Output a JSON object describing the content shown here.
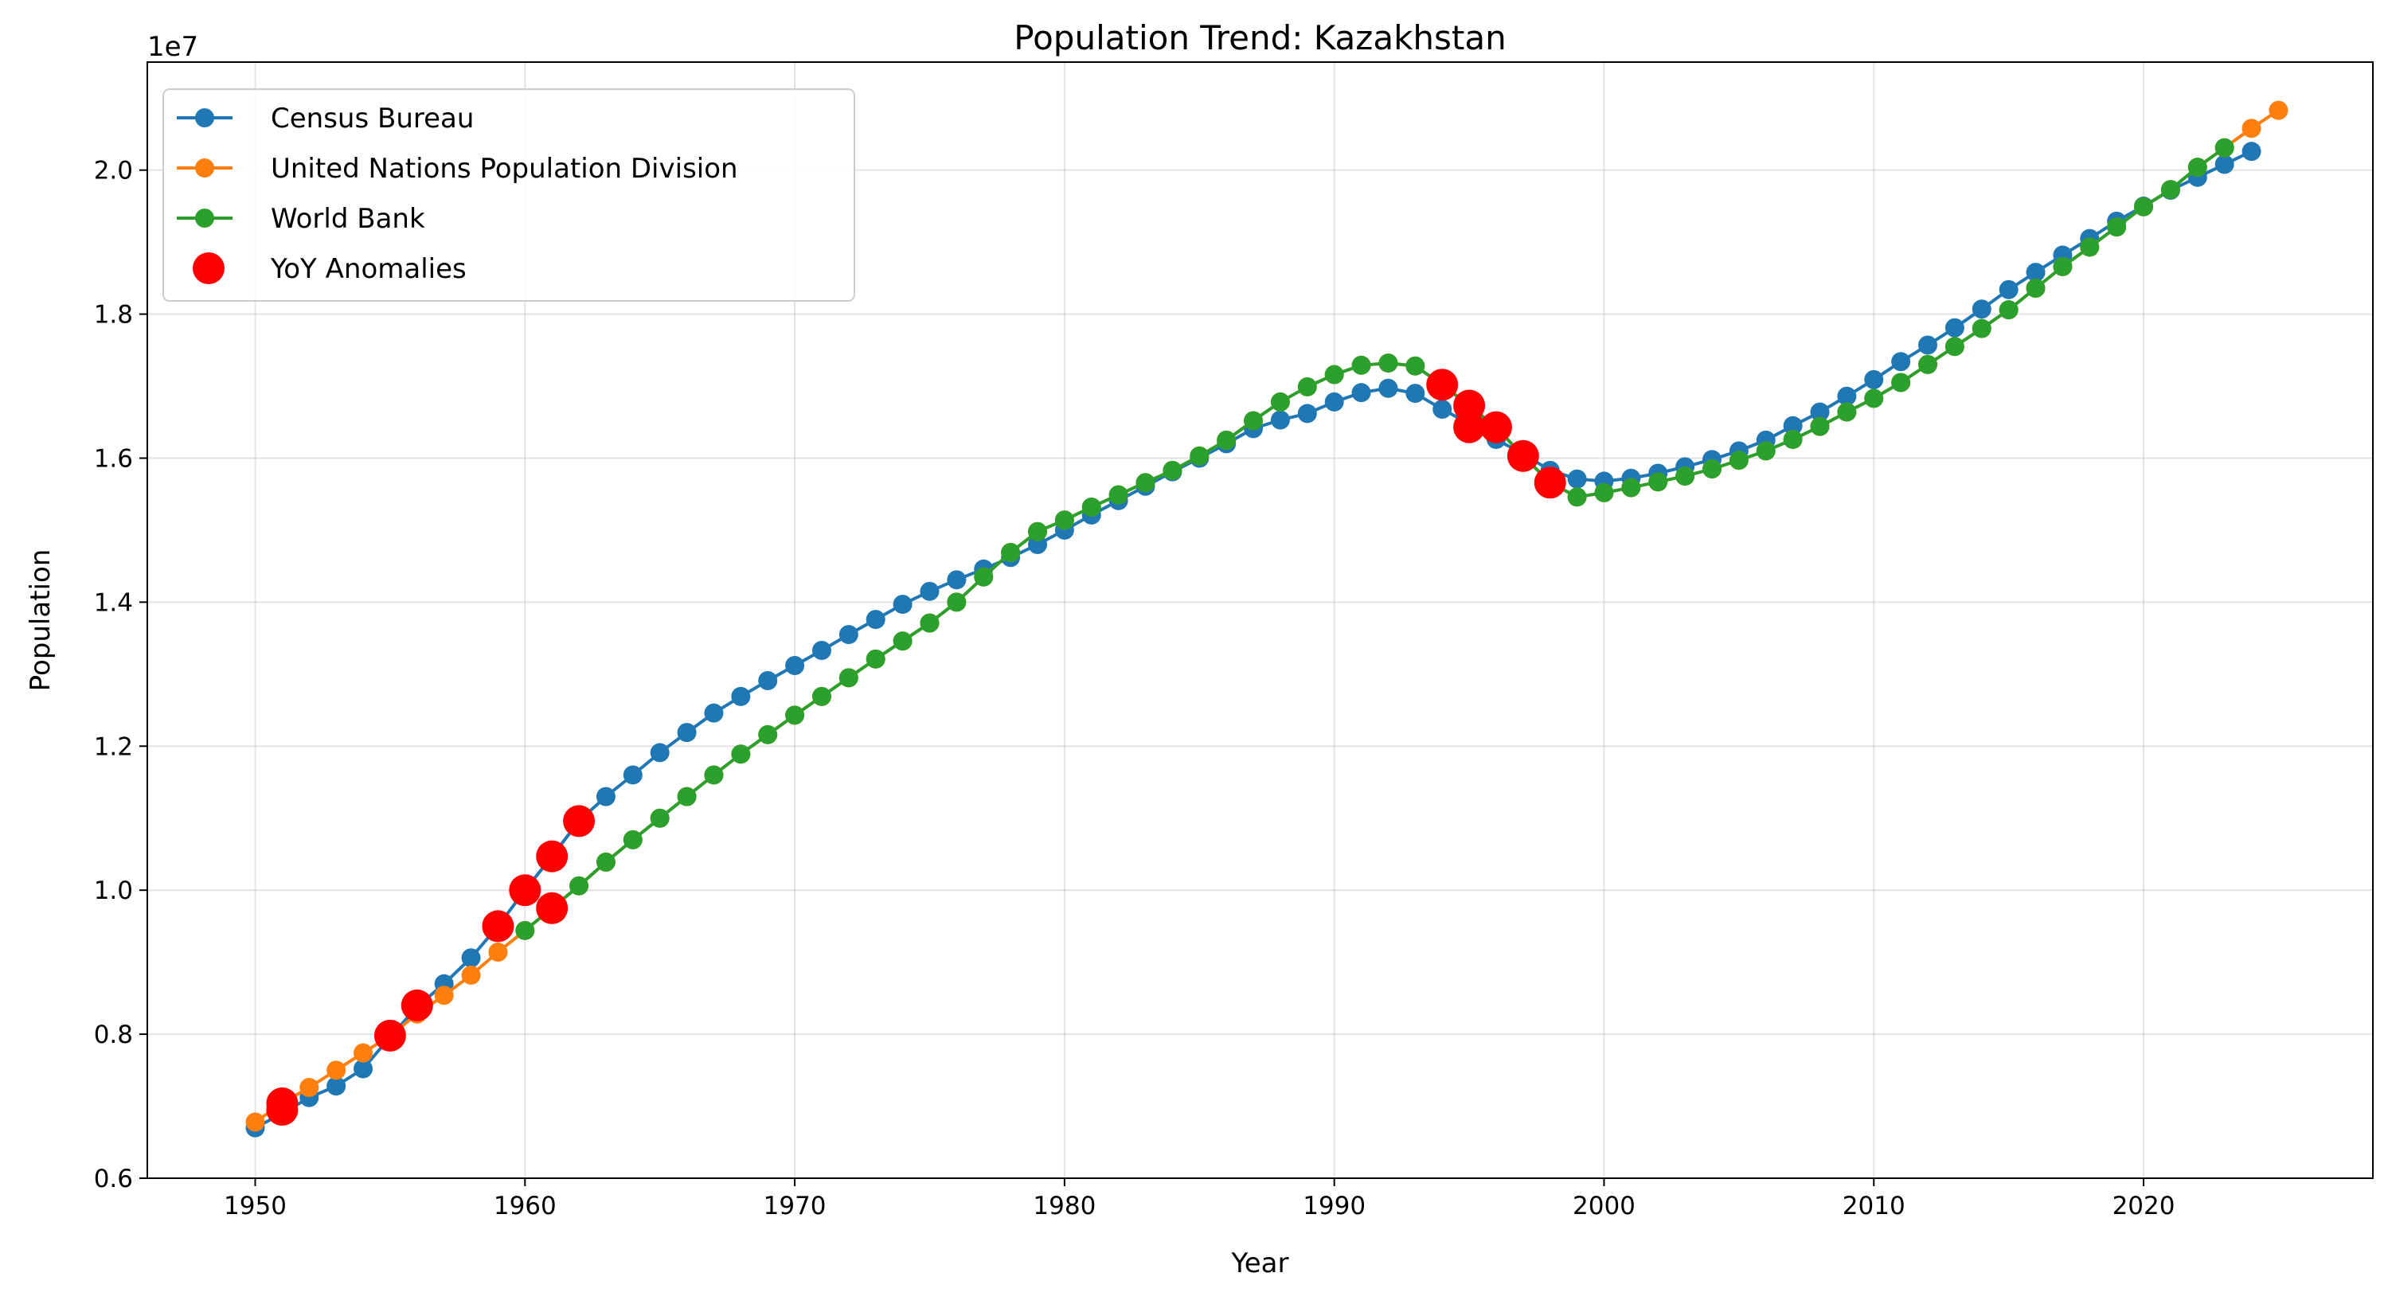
{
  "chart_data": {
    "type": "line",
    "title": "Population Trend: Kazakhstan",
    "xlabel": "Year",
    "ylabel": "Population",
    "y_multiplier": "1e7",
    "xlim": [
      1946,
      2028.5
    ],
    "ylim": [
      0.6,
      2.15
    ],
    "x_ticks": [
      1950,
      1960,
      1970,
      1980,
      1990,
      2000,
      2010,
      2020
    ],
    "y_ticks": [
      "0.6",
      "0.8",
      "1.0",
      "1.2",
      "1.4",
      "1.6",
      "1.8",
      "2.0"
    ],
    "grid": true,
    "legend_position": "upper left",
    "colors": {
      "census": "#1f77b4",
      "un": "#ff7f0e",
      "wb": "#2ca02c",
      "anomaly": "#ff0000"
    },
    "series": [
      {
        "name": "Census Bureau",
        "x": [
          1950,
          1951,
          1952,
          1953,
          1954,
          1955,
          1956,
          1957,
          1958,
          1959,
          1960,
          1961,
          1962,
          1963,
          1964,
          1965,
          1966,
          1967,
          1968,
          1969,
          1970,
          1971,
          1972,
          1973,
          1974,
          1975,
          1976,
          1977,
          1978,
          1979,
          1980,
          1981,
          1982,
          1983,
          1984,
          1985,
          1986,
          1987,
          1988,
          1989,
          1990,
          1991,
          1992,
          1993,
          1994,
          1995,
          1996,
          1997,
          1998,
          1999,
          2000,
          2001,
          2002,
          2003,
          2004,
          2005,
          2006,
          2007,
          2008,
          2009,
          2010,
          2011,
          2012,
          2013,
          2014,
          2015,
          2016,
          2017,
          2018,
          2019,
          2020,
          2021,
          2022,
          2023,
          2024
        ],
        "y": [
          0.67,
          0.69,
          0.712,
          0.728,
          0.752,
          0.796,
          0.838,
          0.87,
          0.906,
          0.95,
          1.0,
          1.047,
          1.096,
          1.13,
          1.16,
          1.191,
          1.219,
          1.246,
          1.269,
          1.291,
          1.312,
          1.333,
          1.355,
          1.376,
          1.397,
          1.415,
          1.431,
          1.446,
          1.462,
          1.48,
          1.5,
          1.521,
          1.541,
          1.561,
          1.581,
          1.6,
          1.62,
          1.641,
          1.653,
          1.662,
          1.678,
          1.691,
          1.697,
          1.69,
          1.668,
          1.648,
          1.626,
          1.606,
          1.583,
          1.571,
          1.568,
          1.572,
          1.579,
          1.588,
          1.598,
          1.61,
          1.625,
          1.645,
          1.664,
          1.686,
          1.709,
          1.734,
          1.757,
          1.781,
          1.807,
          1.834,
          1.858,
          1.882,
          1.905,
          1.929,
          1.95,
          1.972,
          1.99,
          2.008,
          2.026
        ]
      },
      {
        "name": "United Nations Population Division",
        "x": [
          1950,
          1951,
          1952,
          1953,
          1954,
          1955,
          1956,
          1957,
          1958,
          1959,
          1960,
          1961,
          1962,
          1963,
          1964,
          1965,
          1966,
          1967,
          1968,
          1969,
          1970,
          1971,
          1972,
          1973,
          1974,
          1975,
          1976,
          1977,
          1978,
          1979,
          1980,
          1981,
          1982,
          1983,
          1984,
          1985,
          1986,
          1987,
          1988,
          1989,
          1990,
          1991,
          1992,
          1993,
          1994,
          1995,
          1996,
          1997,
          1998,
          1999,
          2000,
          2001,
          2002,
          2003,
          2004,
          2005,
          2006,
          2007,
          2008,
          2009,
          2010,
          2011,
          2012,
          2013,
          2014,
          2015,
          2016,
          2017,
          2018,
          2019,
          2020,
          2021,
          2022,
          2023,
          2024,
          2025
        ],
        "y": [
          0.678,
          0.704,
          0.726,
          0.75,
          0.774,
          0.798,
          0.828,
          0.854,
          0.882,
          0.914,
          0.944,
          0.975,
          1.006,
          1.039,
          1.07,
          1.1,
          1.13,
          1.16,
          1.189,
          1.216,
          1.243,
          1.269,
          1.295,
          1.321,
          1.346,
          1.371,
          1.4,
          1.435,
          1.469,
          1.498,
          1.514,
          1.532,
          1.549,
          1.566,
          1.583,
          1.603,
          1.625,
          1.652,
          1.678,
          1.699,
          1.716,
          1.729,
          1.732,
          1.728,
          1.702,
          1.673,
          1.643,
          1.603,
          1.566,
          1.546,
          1.552,
          1.559,
          1.567,
          1.575,
          1.585,
          1.597,
          1.61,
          1.626,
          1.644,
          1.664,
          1.683,
          1.705,
          1.73,
          1.755,
          1.78,
          1.806,
          1.836,
          1.866,
          1.893,
          1.921,
          1.949,
          1.973,
          2.004,
          2.031,
          2.058,
          2.083
        ]
      },
      {
        "name": "World Bank",
        "x": [
          1960,
          1961,
          1962,
          1963,
          1964,
          1965,
          1966,
          1967,
          1968,
          1969,
          1970,
          1971,
          1972,
          1973,
          1974,
          1975,
          1976,
          1977,
          1978,
          1979,
          1980,
          1981,
          1982,
          1983,
          1984,
          1985,
          1986,
          1987,
          1988,
          1989,
          1990,
          1991,
          1992,
          1993,
          1994,
          1995,
          1996,
          1997,
          1998,
          1999,
          2000,
          2001,
          2002,
          2003,
          2004,
          2005,
          2006,
          2007,
          2008,
          2009,
          2010,
          2011,
          2012,
          2013,
          2014,
          2015,
          2016,
          2017,
          2018,
          2019,
          2020,
          2021,
          2022,
          2023
        ],
        "y": [
          0.944,
          0.975,
          1.006,
          1.039,
          1.07,
          1.1,
          1.13,
          1.16,
          1.189,
          1.216,
          1.243,
          1.269,
          1.295,
          1.321,
          1.346,
          1.371,
          1.4,
          1.435,
          1.469,
          1.498,
          1.514,
          1.532,
          1.549,
          1.566,
          1.583,
          1.603,
          1.625,
          1.652,
          1.678,
          1.699,
          1.716,
          1.729,
          1.732,
          1.728,
          1.702,
          1.673,
          1.643,
          1.603,
          1.566,
          1.546,
          1.552,
          1.559,
          1.567,
          1.575,
          1.585,
          1.597,
          1.61,
          1.626,
          1.644,
          1.664,
          1.683,
          1.705,
          1.73,
          1.755,
          1.78,
          1.806,
          1.836,
          1.866,
          1.893,
          1.921,
          1.949,
          1.973,
          2.004,
          2.031
        ]
      },
      {
        "name": "YoY Anomalies",
        "x": [
          1951,
          1951,
          1955,
          1956,
          1959,
          1960,
          1961,
          1961,
          1962,
          1994,
          1995,
          1995,
          1996,
          1997,
          1998
        ],
        "y": [
          0.695,
          0.704,
          0.798,
          0.84,
          0.95,
          1.0,
          0.975,
          1.047,
          1.096,
          1.702,
          1.673,
          1.643,
          1.643,
          1.603,
          1.566
        ]
      }
    ]
  }
}
